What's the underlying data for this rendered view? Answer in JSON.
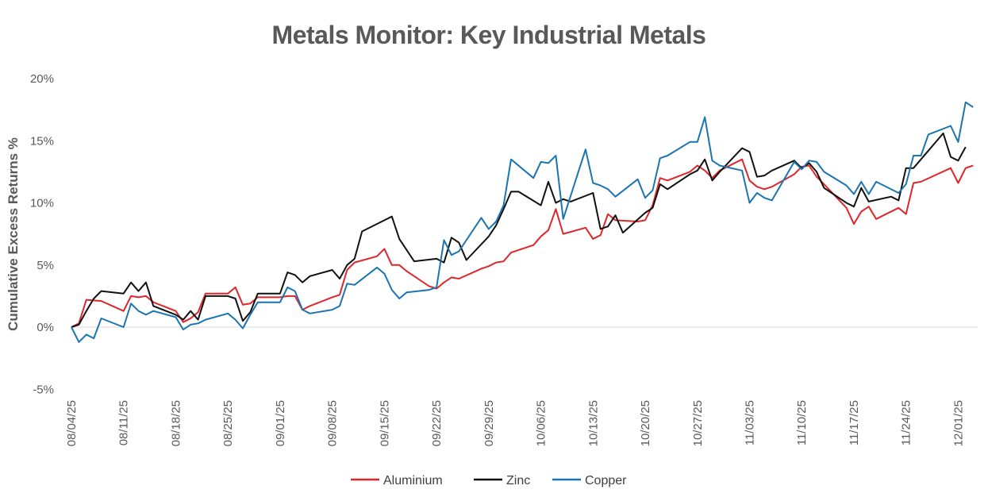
{
  "chart_data": {
    "type": "line",
    "title": "Metals Monitor: Key Industrial Metals",
    "xlabel": "",
    "ylabel": "Cumulative Excess Returns %",
    "ylim": [
      -5,
      20
    ],
    "yticks": [
      -5,
      0,
      5,
      10,
      15,
      20
    ],
    "ytick_labels": [
      "-5%",
      "0%",
      "5%",
      "10%",
      "15%",
      "20%"
    ],
    "x_range": [
      0,
      126
    ],
    "xtick_labels": [
      "08/04/25",
      "08/11/25",
      "08/18/25",
      "08/25/25",
      "09/01/25",
      "09/08/25",
      "09/15/25",
      "09/22/25",
      "09/29/25",
      "10/06/25",
      "10/13/25",
      "10/20/25",
      "10/27/25",
      "11/03/25",
      "11/10/25",
      "11/17/25",
      "11/24/25",
      "12/01/25"
    ],
    "xtick_positions": [
      0,
      7,
      14,
      21,
      28,
      35,
      42,
      49,
      56,
      63,
      70,
      77,
      84,
      91,
      98,
      105,
      112,
      119
    ],
    "legend_position": "bottom",
    "series": [
      {
        "name": "Aluminium",
        "color": "#e0262b",
        "points": [
          [
            0,
            0
          ],
          [
            1,
            0.3
          ],
          [
            2,
            2.2
          ],
          [
            4,
            2.1
          ],
          [
            7,
            1.3
          ],
          [
            8,
            2.5
          ],
          [
            9,
            2.4
          ],
          [
            10,
            2.5
          ],
          [
            11,
            2.0
          ],
          [
            14,
            1.3
          ],
          [
            15,
            0.4
          ],
          [
            16,
            0.7
          ],
          [
            17,
            1.2
          ],
          [
            18,
            2.7
          ],
          [
            21,
            2.7
          ],
          [
            22,
            3.2
          ],
          [
            23,
            1.8
          ],
          [
            24,
            1.9
          ],
          [
            25,
            2.4
          ],
          [
            28,
            2.4
          ],
          [
            29,
            2.5
          ],
          [
            30,
            2.5
          ],
          [
            31,
            1.4
          ],
          [
            32,
            1.7
          ],
          [
            35,
            2.4
          ],
          [
            36,
            2.6
          ],
          [
            37,
            4.6
          ],
          [
            38,
            5.2
          ],
          [
            41,
            5.7
          ],
          [
            42,
            6.3
          ],
          [
            43,
            5.0
          ],
          [
            44,
            5.0
          ],
          [
            45,
            4.5
          ],
          [
            48,
            3.3
          ],
          [
            49,
            3.1
          ],
          [
            50,
            3.6
          ],
          [
            51,
            4.0
          ],
          [
            52,
            3.9
          ],
          [
            55,
            4.7
          ],
          [
            56,
            4.9
          ],
          [
            57,
            5.2
          ],
          [
            58,
            5.3
          ],
          [
            59,
            6.0
          ],
          [
            62,
            6.6
          ],
          [
            63,
            7.3
          ],
          [
            64,
            7.8
          ],
          [
            65,
            9.5
          ],
          [
            66,
            7.5
          ],
          [
            69,
            8.0
          ],
          [
            70,
            7.1
          ],
          [
            71,
            7.4
          ],
          [
            72,
            9.1
          ],
          [
            73,
            8.6
          ],
          [
            76,
            8.5
          ],
          [
            77,
            8.6
          ],
          [
            78,
            9.8
          ],
          [
            79,
            12.0
          ],
          [
            80,
            11.8
          ],
          [
            83,
            12.5
          ],
          [
            84,
            13.0
          ],
          [
            85,
            12.6
          ],
          [
            86,
            12.0
          ],
          [
            87,
            12.6
          ],
          [
            90,
            13.5
          ],
          [
            91,
            11.8
          ],
          [
            92,
            11.3
          ],
          [
            93,
            11.1
          ],
          [
            94,
            11.3
          ],
          [
            97,
            12.3
          ],
          [
            98,
            12.9
          ],
          [
            99,
            13.0
          ],
          [
            100,
            12.1
          ],
          [
            101,
            11.5
          ],
          [
            104,
            9.6
          ],
          [
            105,
            8.3
          ],
          [
            106,
            9.3
          ],
          [
            107,
            9.7
          ],
          [
            108,
            8.7
          ],
          [
            111,
            9.6
          ],
          [
            112,
            9.1
          ],
          [
            113,
            11.6
          ],
          [
            114,
            11.7
          ],
          [
            118,
            12.8
          ],
          [
            119,
            11.6
          ],
          [
            120,
            12.8
          ],
          [
            121,
            13.0
          ]
        ]
      },
      {
        "name": "Zinc",
        "color": "#111111",
        "points": [
          [
            0,
            0
          ],
          [
            1,
            0.2
          ],
          [
            2,
            1.3
          ],
          [
            3,
            2.3
          ],
          [
            4,
            2.9
          ],
          [
            7,
            2.7
          ],
          [
            8,
            3.6
          ],
          [
            9,
            2.9
          ],
          [
            10,
            3.6
          ],
          [
            11,
            1.7
          ],
          [
            14,
            1.0
          ],
          [
            15,
            0.6
          ],
          [
            16,
            1.3
          ],
          [
            17,
            0.6
          ],
          [
            18,
            2.5
          ],
          [
            21,
            2.5
          ],
          [
            22,
            2.3
          ],
          [
            23,
            0.5
          ],
          [
            24,
            1.2
          ],
          [
            25,
            2.7
          ],
          [
            28,
            2.7
          ],
          [
            29,
            4.4
          ],
          [
            30,
            4.2
          ],
          [
            31,
            3.6
          ],
          [
            32,
            4.1
          ],
          [
            35,
            4.6
          ],
          [
            36,
            3.9
          ],
          [
            37,
            5.0
          ],
          [
            38,
            5.5
          ],
          [
            39,
            7.7
          ],
          [
            42,
            8.6
          ],
          [
            43,
            8.9
          ],
          [
            44,
            7.1
          ],
          [
            46,
            5.3
          ],
          [
            49,
            5.5
          ],
          [
            50,
            5.2
          ],
          [
            51,
            7.2
          ],
          [
            52,
            6.8
          ],
          [
            53,
            5.4
          ],
          [
            56,
            7.3
          ],
          [
            57,
            8.2
          ],
          [
            58,
            9.5
          ],
          [
            59,
            10.9
          ],
          [
            60,
            10.9
          ],
          [
            63,
            9.8
          ],
          [
            64,
            11.7
          ],
          [
            65,
            10.0
          ],
          [
            66,
            10.3
          ],
          [
            67,
            10.1
          ],
          [
            70,
            10.8
          ],
          [
            71,
            7.9
          ],
          [
            72,
            8.1
          ],
          [
            73,
            9.0
          ],
          [
            74,
            7.6
          ],
          [
            77,
            9.2
          ],
          [
            78,
            9.6
          ],
          [
            79,
            11.5
          ],
          [
            80,
            11.1
          ],
          [
            83,
            12.3
          ],
          [
            84,
            12.6
          ],
          [
            85,
            13.5
          ],
          [
            86,
            11.8
          ],
          [
            87,
            12.5
          ],
          [
            90,
            14.4
          ],
          [
            91,
            14.1
          ],
          [
            92,
            12.1
          ],
          [
            93,
            12.2
          ],
          [
            94,
            12.6
          ],
          [
            97,
            13.4
          ],
          [
            98,
            12.8
          ],
          [
            99,
            13.2
          ],
          [
            100,
            12.5
          ],
          [
            101,
            11.2
          ],
          [
            104,
            10.0
          ],
          [
            105,
            9.7
          ],
          [
            106,
            11.2
          ],
          [
            107,
            10.1
          ],
          [
            110,
            10.5
          ],
          [
            111,
            10.2
          ],
          [
            112,
            12.8
          ],
          [
            113,
            12.8
          ],
          [
            117,
            15.6
          ],
          [
            118,
            13.7
          ],
          [
            119,
            13.4
          ],
          [
            120,
            14.5
          ]
        ]
      },
      {
        "name": "Copper",
        "color": "#1b75b1",
        "points": [
          [
            0,
            0
          ],
          [
            1,
            -1.2
          ],
          [
            2,
            -0.6
          ],
          [
            3,
            -0.9
          ],
          [
            4,
            0.7
          ],
          [
            7,
            0.0
          ],
          [
            8,
            1.9
          ],
          [
            9,
            1.3
          ],
          [
            10,
            1.0
          ],
          [
            11,
            1.3
          ],
          [
            14,
            0.8
          ],
          [
            15,
            -0.2
          ],
          [
            16,
            0.2
          ],
          [
            17,
            0.3
          ],
          [
            18,
            0.6
          ],
          [
            21,
            1.1
          ],
          [
            22,
            0.6
          ],
          [
            23,
            -0.1
          ],
          [
            24,
            1.0
          ],
          [
            25,
            2.0
          ],
          [
            28,
            2.0
          ],
          [
            29,
            3.2
          ],
          [
            30,
            2.9
          ],
          [
            31,
            1.4
          ],
          [
            32,
            1.1
          ],
          [
            35,
            1.4
          ],
          [
            36,
            1.7
          ],
          [
            37,
            3.5
          ],
          [
            38,
            3.4
          ],
          [
            41,
            4.8
          ],
          [
            42,
            4.3
          ],
          [
            43,
            3.0
          ],
          [
            44,
            2.3
          ],
          [
            45,
            2.8
          ],
          [
            48,
            3.0
          ],
          [
            49,
            3.2
          ],
          [
            50,
            7.0
          ],
          [
            51,
            5.8
          ],
          [
            52,
            6.1
          ],
          [
            55,
            8.8
          ],
          [
            56,
            7.9
          ],
          [
            57,
            8.5
          ],
          [
            58,
            9.8
          ],
          [
            59,
            13.5
          ],
          [
            62,
            12.0
          ],
          [
            63,
            13.3
          ],
          [
            64,
            13.2
          ],
          [
            65,
            13.8
          ],
          [
            66,
            8.7
          ],
          [
            69,
            14.3
          ],
          [
            70,
            11.6
          ],
          [
            71,
            11.4
          ],
          [
            72,
            11.1
          ],
          [
            73,
            10.5
          ],
          [
            76,
            11.9
          ],
          [
            77,
            10.4
          ],
          [
            78,
            11.0
          ],
          [
            79,
            13.6
          ],
          [
            80,
            13.8
          ],
          [
            83,
            14.9
          ],
          [
            84,
            14.9
          ],
          [
            85,
            16.9
          ],
          [
            86,
            13.4
          ],
          [
            87,
            13.0
          ],
          [
            90,
            12.6
          ],
          [
            91,
            10.0
          ],
          [
            92,
            10.8
          ],
          [
            93,
            10.4
          ],
          [
            94,
            10.2
          ],
          [
            97,
            13.3
          ],
          [
            98,
            12.7
          ],
          [
            99,
            13.4
          ],
          [
            100,
            13.3
          ],
          [
            101,
            12.5
          ],
          [
            104,
            11.4
          ],
          [
            105,
            10.7
          ],
          [
            106,
            11.7
          ],
          [
            107,
            10.7
          ],
          [
            108,
            11.7
          ],
          [
            111,
            10.8
          ],
          [
            112,
            11.5
          ],
          [
            113,
            13.8
          ],
          [
            114,
            13.8
          ],
          [
            115,
            15.5
          ],
          [
            118,
            16.2
          ],
          [
            119,
            14.9
          ],
          [
            120,
            18.1
          ],
          [
            121,
            17.7
          ]
        ]
      }
    ]
  }
}
